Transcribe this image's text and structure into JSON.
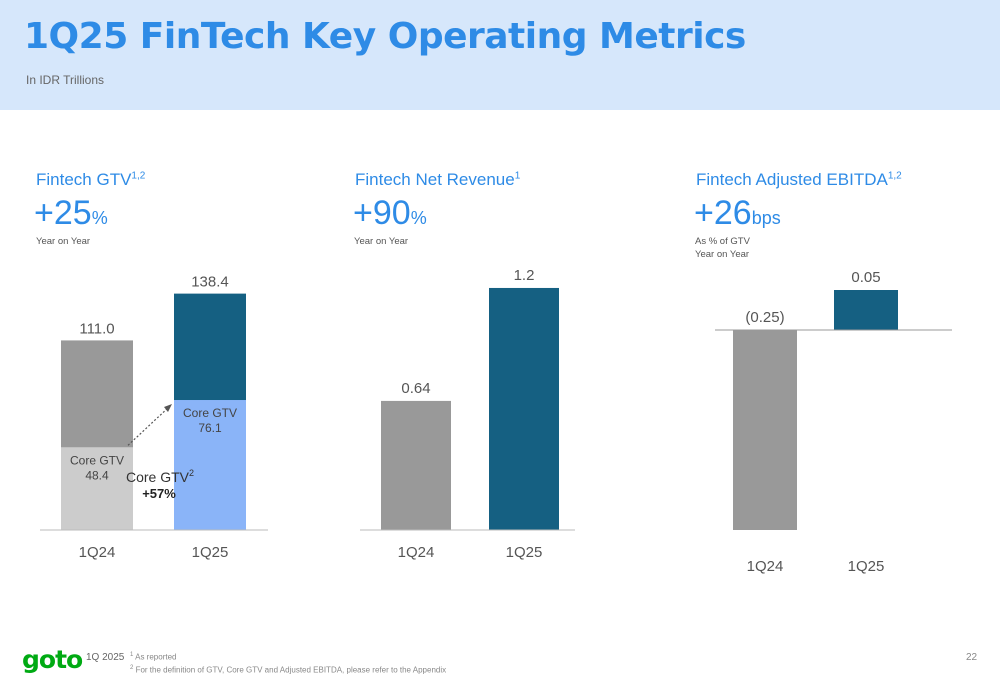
{
  "header": {
    "title": "1Q25 FinTech Key Operating Metrics",
    "subtitle": "In IDR Trillions"
  },
  "colors": {
    "title_blue": "#2e8be6",
    "header_bg": "#d6e7fb",
    "gray_dark": "#999999",
    "gray_light": "#cccccc",
    "teal": "#156082",
    "light_blue": "#8ab4f8"
  },
  "panels": [
    {
      "title": "Fintech GTV",
      "title_sup": "1,2",
      "big_value": "+25",
      "big_unit": "%",
      "note_lines": [
        "Year on Year"
      ]
    },
    {
      "title": "Fintech Net Revenue",
      "title_sup": "1",
      "big_value": "+90",
      "big_unit": "%",
      "note_lines": [
        "Year on Year"
      ]
    },
    {
      "title": "Fintech Adjusted EBITDA",
      "title_sup": "1,2",
      "big_value": "+26",
      "big_unit": "bps",
      "note_lines": [
        "As % of GTV",
        "Year on Year"
      ]
    }
  ],
  "chart_data": [
    {
      "type": "bar",
      "stacked": true,
      "categories": [
        "1Q24",
        "1Q25"
      ],
      "totals": [
        "111.0",
        "138.4"
      ],
      "total_values": [
        111.0,
        138.4
      ],
      "series": [
        {
          "name": "Core GTV",
          "values": [
            48.4,
            76.1
          ],
          "labels": [
            "Core GTV\n48.4",
            "Core GTV\n76.1"
          ]
        },
        {
          "values": [
            62.6,
            62.3
          ]
        }
      ],
      "annotation": {
        "label": "Core GTV",
        "label_sup": "2",
        "value": "+57%"
      }
    },
    {
      "type": "bar",
      "categories": [
        "1Q24",
        "1Q25"
      ],
      "values": [
        0.64,
        1.2
      ],
      "labels": [
        "0.64",
        "1.2"
      ]
    },
    {
      "type": "bar",
      "categories": [
        "1Q24",
        "1Q25"
      ],
      "values": [
        -0.25,
        0.05
      ],
      "labels": [
        "(0.25)",
        "0.05"
      ]
    }
  ],
  "footer": {
    "logo": "goto",
    "period": "1Q 2025",
    "footnote_1_sup": "1",
    "footnote_1": "As reported",
    "footnote_2_sup": "2",
    "footnote_2": "For the definition of GTV, Core GTV and Adjusted EBITDA, please refer to the Appendix",
    "page": "22"
  }
}
